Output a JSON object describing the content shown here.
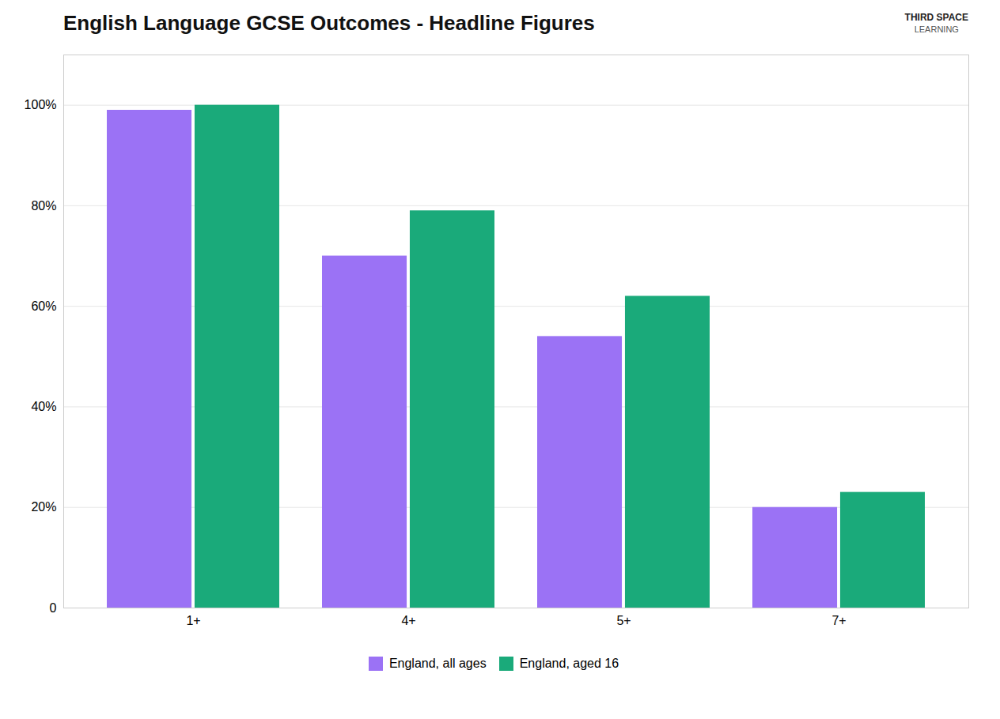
{
  "chart_data": {
    "type": "bar",
    "title": "English Language GCSE Outcomes - Headline Figures",
    "categories": [
      "1+",
      "4+",
      "5+",
      "7+"
    ],
    "series": [
      {
        "name": "England, all ages",
        "color": "#9b72f5",
        "values": [
          99,
          70,
          54,
          20
        ]
      },
      {
        "name": "England, aged 16",
        "color": "#1aaa7a",
        "values": [
          100,
          79,
          62,
          23
        ]
      }
    ],
    "ylim": [
      0,
      110
    ],
    "yticks": [
      0,
      {
        "value": 20,
        "label": "20%"
      },
      {
        "value": 40,
        "label": "40%"
      },
      {
        "value": 60,
        "label": "60%"
      },
      {
        "value": 80,
        "label": "80%"
      },
      {
        "value": 100,
        "label": "100%"
      }
    ],
    "grid": true,
    "legend": "bottom",
    "annotations": [
      "THIRD SPACE",
      "LEARNING"
    ]
  }
}
